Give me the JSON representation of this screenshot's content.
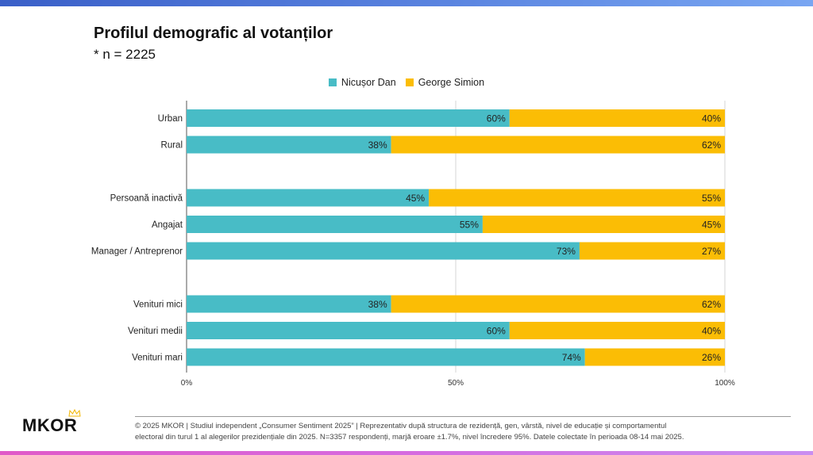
{
  "title": "Profilul demografic al votanților",
  "subtitle": "* n = 2225",
  "legend": [
    {
      "label": "Nicușor Dan",
      "color": "#48bcc6"
    },
    {
      "label": "George Simion",
      "color": "#fbbd05"
    }
  ],
  "chart_data": {
    "type": "bar",
    "orientation": "horizontal",
    "stacked": true,
    "categories": [
      "Urban",
      "Rural",
      "Persoană inactivă",
      "Angajat",
      "Manager / Antreprenor",
      "Venituri mici",
      "Venituri medii",
      "Venituri mari"
    ],
    "groups": [
      [
        0,
        1
      ],
      [
        2,
        3,
        4
      ],
      [
        5,
        6,
        7
      ]
    ],
    "series": [
      {
        "name": "Nicușor Dan",
        "color": "#48bcc6",
        "values": [
          60,
          38,
          45,
          55,
          73,
          38,
          60,
          74
        ],
        "labels": [
          "60%",
          "38%",
          "45%",
          "55%",
          "73%",
          "38%",
          "60%",
          "74%"
        ]
      },
      {
        "name": "George Simion",
        "color": "#fbbd05",
        "values": [
          40,
          62,
          55,
          45,
          27,
          62,
          40,
          26
        ],
        "labels": [
          "40%",
          "62%",
          "55%",
          "45%",
          "27%",
          "62%",
          "40%",
          "26%"
        ]
      }
    ],
    "xlim": [
      0,
      100
    ],
    "xticks": [
      0,
      50,
      100
    ],
    "xtick_labels": [
      "0%",
      "50%",
      "100%"
    ],
    "legend_position": "top-center"
  },
  "footer": {
    "brand": "MKOR",
    "line1": "© 2025 MKOR | Studiul independent „Consumer Sentiment 2025” | Reprezentativ după structura de rezidență, gen, vârstă, nivel de educație și comportamentul",
    "line2": "electoral din turul 1 al alegerilor prezidențiale din 2025. N=3357 respondenți, marjă eroare ±1.7%, nivel încredere 95%. Datele colectate în perioada 08-14 mai 2025."
  }
}
